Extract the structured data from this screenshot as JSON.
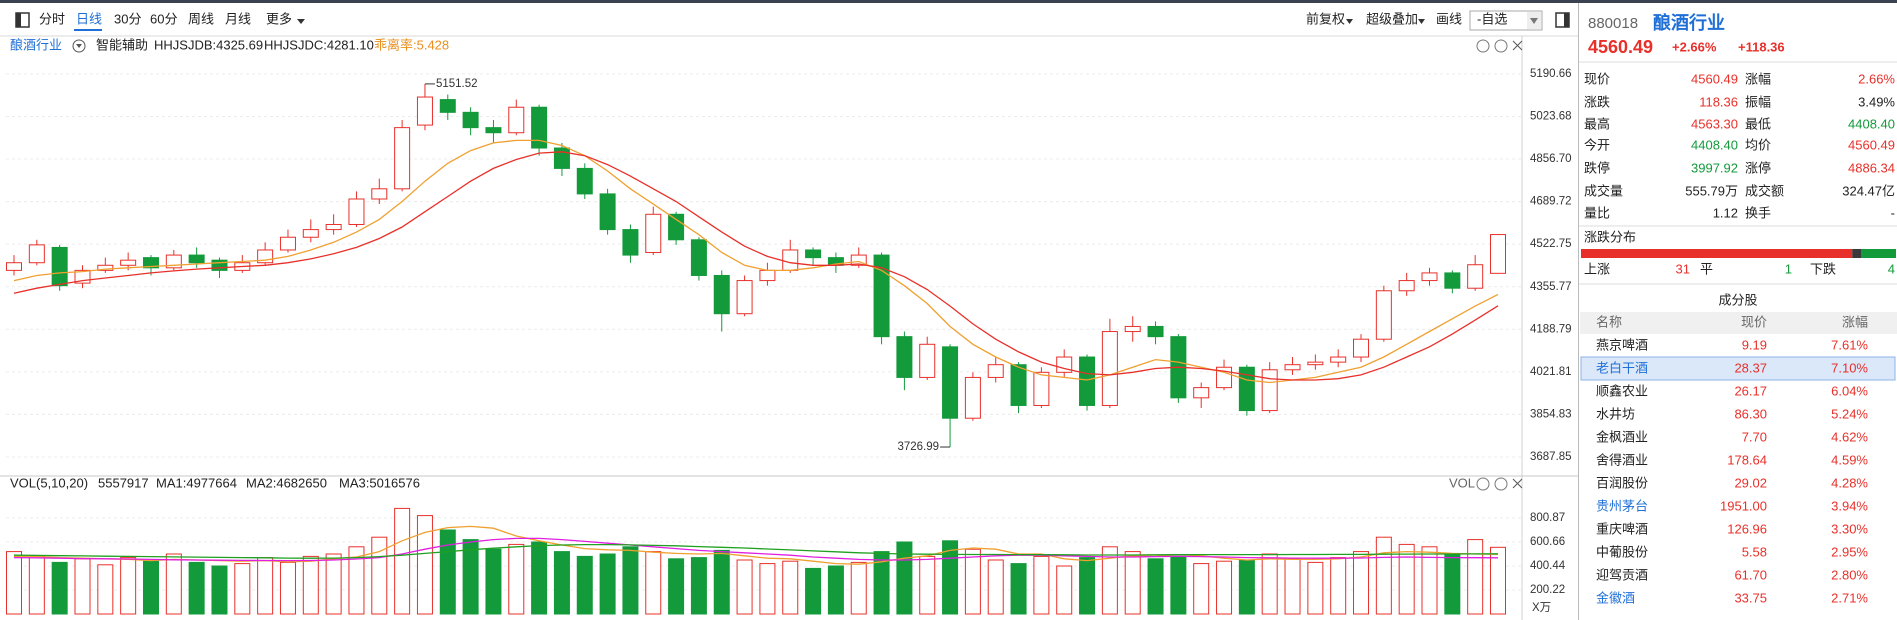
{
  "toolbar": {
    "left": [
      "分时",
      "日线",
      "30分",
      "60分",
      "周线",
      "月线",
      "更多"
    ],
    "right": [
      "前复权",
      "超级叠加",
      "画线",
      "-自选"
    ]
  },
  "chart_data": [
    {
      "type": "candlestick",
      "title": "酿酒行业",
      "assist_label": "智能辅助",
      "indicators": [
        "乖离率:5.428"
      ],
      "high_label": "5151.52",
      "low_label": "3726.99",
      "ylim": [
        3629,
        5261
      ],
      "yticks": [
        3687.85,
        3854.83,
        4021.81,
        4188.79,
        4355.77,
        4522.75,
        4689.72,
        {
          "value": 4856.7,
          "label": "4856.70"
        },
        5023.68,
        5190.66
      ],
      "grid": true,
      "up_color": "#e8302a",
      "down_color": "#139a3b",
      "candles": [
        [
          4420,
          4480,
          4400,
          4450
        ],
        [
          4450,
          4540,
          4440,
          4520
        ],
        [
          4510,
          4520,
          4340,
          4360
        ],
        [
          4370,
          4440,
          4350,
          4420
        ],
        [
          4420,
          4470,
          4410,
          4440
        ],
        [
          4440,
          4490,
          4420,
          4460
        ],
        [
          4470,
          4480,
          4400,
          4430
        ],
        [
          4430,
          4500,
          4420,
          4480
        ],
        [
          4480,
          4510,
          4430,
          4450
        ],
        [
          4460,
          4470,
          4390,
          4420
        ],
        [
          4420,
          4480,
          4410,
          4450
        ],
        [
          4450,
          4530,
          4440,
          4500
        ],
        [
          4500,
          4580,
          4490,
          4550
        ],
        [
          4550,
          4620,
          4530,
          4580
        ],
        [
          4580,
          4640,
          4560,
          4600
        ],
        [
          4600,
          4730,
          4590,
          4700
        ],
        [
          4700,
          4780,
          4680,
          4740
        ],
        [
          4740,
          5010,
          4730,
          4980
        ],
        [
          4990,
          5151.52,
          4970,
          5100
        ],
        [
          5090,
          5110,
          5010,
          5040
        ],
        [
          5040,
          5060,
          4950,
          4980
        ],
        [
          4980,
          5010,
          4920,
          4960
        ],
        [
          4960,
          5090,
          4950,
          5060
        ],
        [
          5060,
          5070,
          4870,
          4900
        ],
        [
          4900,
          4920,
          4790,
          4820
        ],
        [
          4820,
          4840,
          4700,
          4720
        ],
        [
          4720,
          4740,
          4560,
          4580
        ],
        [
          4580,
          4600,
          4450,
          4480
        ],
        [
          4490,
          4670,
          4480,
          4640
        ],
        [
          4640,
          4650,
          4520,
          4540
        ],
        [
          4540,
          4550,
          4380,
          4400
        ],
        [
          4400,
          4420,
          4180,
          4250
        ],
        [
          4250,
          4400,
          4240,
          4380
        ],
        [
          4380,
          4450,
          4360,
          4420
        ],
        [
          4420,
          4540,
          4410,
          4500
        ],
        [
          4500,
          4510,
          4440,
          4470
        ],
        [
          4470,
          4490,
          4410,
          4440
        ],
        [
          4440,
          4510,
          4430,
          4480
        ],
        [
          4480,
          4490,
          4130,
          4160
        ],
        [
          4160,
          4180,
          3950,
          4000
        ],
        [
          4000,
          4160,
          3990,
          4130
        ],
        [
          4120,
          4130,
          3726.99,
          3840
        ],
        [
          3840,
          4020,
          3830,
          4000
        ],
        [
          4000,
          4080,
          3980,
          4050
        ],
        [
          4050,
          4060,
          3860,
          3890
        ],
        [
          3890,
          4040,
          3880,
          4020
        ],
        [
          4020,
          4110,
          4000,
          4080
        ],
        [
          4080,
          4090,
          3870,
          3890
        ],
        [
          3890,
          4230,
          3880,
          4180
        ],
        [
          4180,
          4240,
          4140,
          4200
        ],
        [
          4200,
          4220,
          4130,
          4160
        ],
        [
          4160,
          4170,
          3900,
          3920
        ],
        [
          3920,
          3980,
          3880,
          3960
        ],
        [
          3960,
          4070,
          3950,
          4040
        ],
        [
          4040,
          4050,
          3850,
          3870
        ],
        [
          3870,
          4060,
          3860,
          4030
        ],
        [
          4030,
          4080,
          4010,
          4050
        ],
        [
          4050,
          4090,
          4030,
          4060
        ],
        [
          4060,
          4110,
          4040,
          4080
        ],
        [
          4080,
          4170,
          4060,
          4150
        ],
        [
          4150,
          4360,
          4140,
          4340
        ],
        [
          4340,
          4410,
          4320,
          4380
        ],
        [
          4380,
          4430,
          4360,
          4410
        ],
        [
          4410,
          4420,
          4330,
          4350
        ],
        [
          4350,
          4480,
          4340,
          4442.13
        ],
        [
          4408.4,
          4563.3,
          4408.4,
          4560.49
        ]
      ],
      "series": [
        {
          "name": "HHJSJDB:4325.69",
          "color": "#f0a030",
          "values": [
            4380,
            4400,
            4410,
            4415,
            4425,
            4430,
            4435,
            4440,
            4445,
            4450,
            4455,
            4460,
            4475,
            4500,
            4530,
            4570,
            4620,
            4690,
            4770,
            4840,
            4890,
            4920,
            4930,
            4930,
            4910,
            4870,
            4810,
            4740,
            4680,
            4620,
            4560,
            4490,
            4440,
            4420,
            4420,
            4430,
            4445,
            4455,
            4420,
            4360,
            4290,
            4200,
            4130,
            4080,
            4040,
            4010,
            4000,
            3990,
            4010,
            4040,
            4070,
            4060,
            4040,
            4020,
            3990,
            3980,
            3990,
            4000,
            4020,
            4040,
            4080,
            4130,
            4180,
            4230,
            4280,
            4325.69
          ]
        },
        {
          "name": "HHJSJDC:4281.10",
          "color": "#e8302a",
          "values": [
            4330,
            4350,
            4365,
            4380,
            4390,
            4400,
            4410,
            4418,
            4425,
            4430,
            4435,
            4440,
            4450,
            4465,
            4485,
            4510,
            4545,
            4590,
            4650,
            4710,
            4770,
            4820,
            4855,
            4880,
            4885,
            4870,
            4835,
            4790,
            4740,
            4690,
            4630,
            4570,
            4515,
            4475,
            4450,
            4440,
            4440,
            4445,
            4430,
            4395,
            4345,
            4280,
            4210,
            4150,
            4100,
            4060,
            4035,
            4015,
            4010,
            4020,
            4035,
            4040,
            4035,
            4025,
            4010,
            3995,
            3990,
            3990,
            3995,
            4010,
            4040,
            4080,
            4120,
            4170,
            4225,
            4281.1
          ]
        }
      ]
    },
    {
      "type": "bar",
      "title": "VOL(5,10,20)",
      "total": 5557917,
      "label": "VOL",
      "unit": "X万",
      "ylim": [
        0,
        1000
      ],
      "yticks": [
        200.22,
        400.44,
        600.66,
        800.87
      ],
      "grid": true,
      "values": [
        520,
        480,
        430,
        460,
        410,
        470,
        440,
        500,
        430,
        400,
        420,
        470,
        430,
        480,
        500,
        560,
        640,
        880,
        820,
        700,
        620,
        540,
        580,
        600,
        520,
        480,
        500,
        560,
        520,
        460,
        470,
        530,
        450,
        420,
        440,
        380,
        400,
        430,
        520,
        600,
        480,
        610,
        540,
        450,
        420,
        480,
        400,
        470,
        560,
        520,
        460,
        480,
        420,
        440,
        450,
        500,
        460,
        430,
        470,
        520,
        640,
        580,
        560,
        500,
        620,
        555.79
      ],
      "series": [
        {
          "name": "MA1:4977664",
          "color": "#f0a030",
          "values": [
            480,
            480,
            470,
            465,
            460,
            455,
            445,
            455,
            450,
            445,
            440,
            445,
            435,
            440,
            460,
            475,
            520,
            610,
            680,
            720,
            730,
            715,
            650,
            610,
            575,
            545,
            535,
            530,
            515,
            505,
            500,
            505,
            485,
            465,
            460,
            440,
            420,
            415,
            435,
            465,
            485,
            530,
            550,
            540,
            500,
            500,
            460,
            445,
            465,
            485,
            480,
            495,
            485,
            465,
            450,
            460,
            455,
            455,
            460,
            475,
            510,
            520,
            515,
            505,
            500,
            497.77
          ]
        },
        {
          "name": "MA2:4682650",
          "color": "#e020e0",
          "values": [
            470,
            468,
            465,
            462,
            460,
            458,
            455,
            452,
            450,
            448,
            447,
            446,
            445,
            446,
            450,
            458,
            470,
            500,
            540,
            575,
            600,
            620,
            630,
            630,
            620,
            605,
            590,
            575,
            560,
            545,
            530,
            520,
            510,
            500,
            490,
            475,
            465,
            455,
            450,
            450,
            455,
            465,
            475,
            485,
            490,
            490,
            485,
            480,
            475,
            475,
            478,
            480,
            478,
            475,
            470,
            468,
            466,
            465,
            465,
            467,
            472,
            475,
            472,
            470,
            469,
            468.27
          ]
        },
        {
          "name": "MA3:5016576",
          "color": "#20a020",
          "values": [
            490,
            488,
            486,
            484,
            482,
            480,
            478,
            476,
            474,
            472,
            470,
            468,
            466,
            465,
            466,
            470,
            478,
            490,
            505,
            520,
            535,
            548,
            560,
            570,
            575,
            578,
            578,
            576,
            572,
            568,
            562,
            556,
            550,
            542,
            534,
            526,
            518,
            510,
            505,
            500,
            498,
            497,
            496,
            496,
            495,
            494,
            493,
            492,
            492,
            492,
            493,
            494,
            495,
            495,
            495,
            495,
            496,
            496,
            497,
            497,
            498,
            499,
            500,
            500,
            501,
            501.66
          ]
        }
      ]
    }
  ],
  "quote": {
    "code": "880018",
    "name": "酿酒行业",
    "price": "4560.49",
    "change_pct": "+2.66%",
    "change": "+118.36"
  },
  "stats": [
    [
      "现价",
      "4560.49",
      "涨幅",
      "2.66%"
    ],
    [
      "涨跌",
      "118.36",
      "振幅",
      "3.49%"
    ],
    [
      "最高",
      "4563.30",
      "最低",
      "4408.40"
    ],
    [
      "今开",
      "4408.40",
      "均价",
      "4560.49"
    ],
    [
      "跌停",
      "3997.92",
      "涨停",
      "4886.34"
    ],
    [
      "成交量",
      "555.79万",
      "成交额",
      "324.47亿"
    ],
    [
      "量比",
      "1.12",
      "换手",
      "-"
    ]
  ],
  "distribution": {
    "title": "涨跌分布",
    "up_label": "上涨",
    "up": 31,
    "flat_label": "平",
    "flat": 1,
    "down_label": "下跌",
    "down": 4
  },
  "constituents": {
    "title": "成分股",
    "columns": [
      "名称",
      "现价",
      "涨幅"
    ],
    "rows": [
      [
        "燕京啤酒",
        "9.19",
        "7.61%"
      ],
      [
        "老白干酒",
        "28.37",
        "7.10%"
      ],
      [
        "顺鑫农业",
        "26.17",
        "6.04%"
      ],
      [
        "水井坊",
        "86.30",
        "5.24%"
      ],
      [
        "金枫酒业",
        "7.70",
        "4.62%"
      ],
      [
        "舍得酒业",
        "178.64",
        "4.59%"
      ],
      [
        "百润股份",
        "29.02",
        "4.28%"
      ],
      [
        "贵州茅台",
        "1951.00",
        "3.94%"
      ],
      [
        "重庆啤酒",
        "126.96",
        "3.30%"
      ],
      [
        "中葡股份",
        "5.58",
        "2.95%"
      ],
      [
        "迎驾贡酒",
        "61.70",
        "2.80%"
      ],
      [
        "金徽酒",
        "33.75",
        "2.71%"
      ]
    ]
  }
}
